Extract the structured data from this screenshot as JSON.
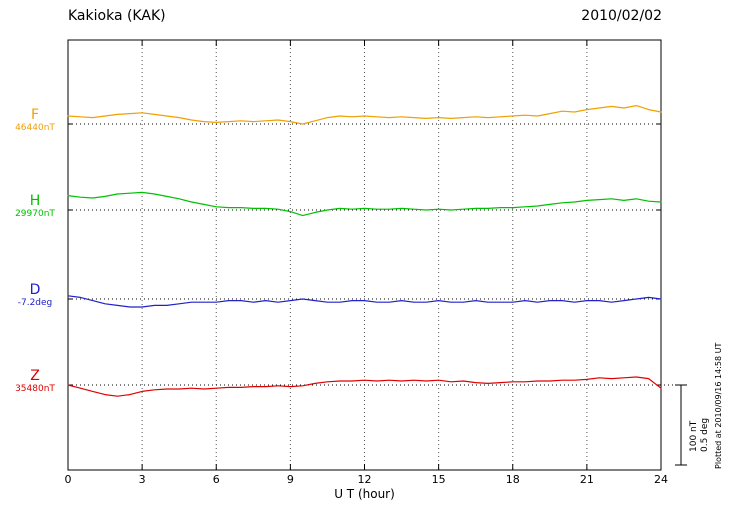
{
  "header": {
    "station": "Kakioka (KAK)",
    "date": "2010/02/02"
  },
  "side": {
    "plotted_at": "Plotted at 2010/09/16 14:58 UT"
  },
  "scalebar": {
    "nt_label": "100 nT",
    "deg_label": "0.5 deg"
  },
  "traces": [
    {
      "label": "F",
      "value": "46440nT",
      "color": "#f0a000"
    },
    {
      "label": "H",
      "value": "29970nT",
      "color": "#00c000"
    },
    {
      "label": "D",
      "value": "-7.2deg",
      "color": "#2020cc"
    },
    {
      "label": "Z",
      "value": "35480nT",
      "color": "#e00000"
    }
  ],
  "xaxis": {
    "label": "U T (hour)",
    "ticks": [
      0,
      3,
      6,
      9,
      12,
      15,
      18,
      21,
      24
    ],
    "min": 0,
    "max": 24
  },
  "chart_data": {
    "type": "line",
    "title": "Kakioka (KAK) magnetogram 2010/02/02",
    "xlabel": "U T (hour)",
    "x_range": [
      0,
      24
    ],
    "x_step": 0.5,
    "scale_divisions": {
      "nT": 100,
      "deg": 0.5
    },
    "series": [
      {
        "name": "F",
        "unit": "nT",
        "baseline": "46440nT",
        "color": "#f0a000",
        "values": [
          10,
          9,
          8,
          10,
          12,
          13,
          14,
          12,
          10,
          8,
          5,
          3,
          2,
          3,
          4,
          3,
          4,
          5,
          3,
          0,
          4,
          8,
          10,
          9,
          10,
          9,
          8,
          9,
          8,
          7,
          8,
          7,
          8,
          9,
          8,
          9,
          10,
          11,
          10,
          13,
          16,
          15,
          18,
          20,
          22,
          20,
          23,
          18,
          15
        ]
      },
      {
        "name": "H",
        "unit": "nT",
        "baseline": "29970nT",
        "color": "#00c000",
        "values": [
          18,
          16,
          15,
          17,
          20,
          21,
          22,
          20,
          17,
          14,
          10,
          7,
          4,
          3,
          3,
          2,
          2,
          1,
          -2,
          -7,
          -3,
          0,
          2,
          1,
          2,
          1,
          1,
          2,
          1,
          0,
          1,
          0,
          1,
          2,
          2,
          3,
          3,
          4,
          5,
          7,
          9,
          10,
          12,
          13,
          14,
          12,
          14,
          11,
          10
        ]
      },
      {
        "name": "D",
        "unit": "deg",
        "baseline": "-7.2deg",
        "color": "#2020cc",
        "values": [
          0.02,
          0.01,
          -0.01,
          -0.03,
          -0.04,
          -0.05,
          -0.05,
          -0.04,
          -0.04,
          -0.03,
          -0.02,
          -0.02,
          -0.02,
          -0.01,
          -0.01,
          -0.02,
          -0.01,
          -0.02,
          -0.01,
          0,
          -0.01,
          -0.02,
          -0.02,
          -0.01,
          -0.01,
          -0.02,
          -0.02,
          -0.01,
          -0.02,
          -0.02,
          -0.01,
          -0.02,
          -0.02,
          -0.01,
          -0.02,
          -0.02,
          -0.02,
          -0.01,
          -0.02,
          -0.01,
          -0.01,
          -0.02,
          -0.01,
          -0.01,
          -0.02,
          -0.01,
          0,
          0.01,
          0
        ]
      },
      {
        "name": "Z",
        "unit": "nT",
        "baseline": "35480nT",
        "color": "#e00000",
        "values": [
          0,
          -4,
          -8,
          -12,
          -14,
          -12,
          -8,
          -6,
          -5,
          -5,
          -4,
          -5,
          -4,
          -3,
          -3,
          -2,
          -2,
          -1,
          -2,
          -1,
          2,
          4,
          5,
          5,
          6,
          5,
          6,
          5,
          6,
          5,
          6,
          4,
          5,
          3,
          2,
          3,
          4,
          4,
          5,
          5,
          6,
          6,
          7,
          9,
          8,
          9,
          10,
          8,
          -4
        ]
      }
    ]
  }
}
